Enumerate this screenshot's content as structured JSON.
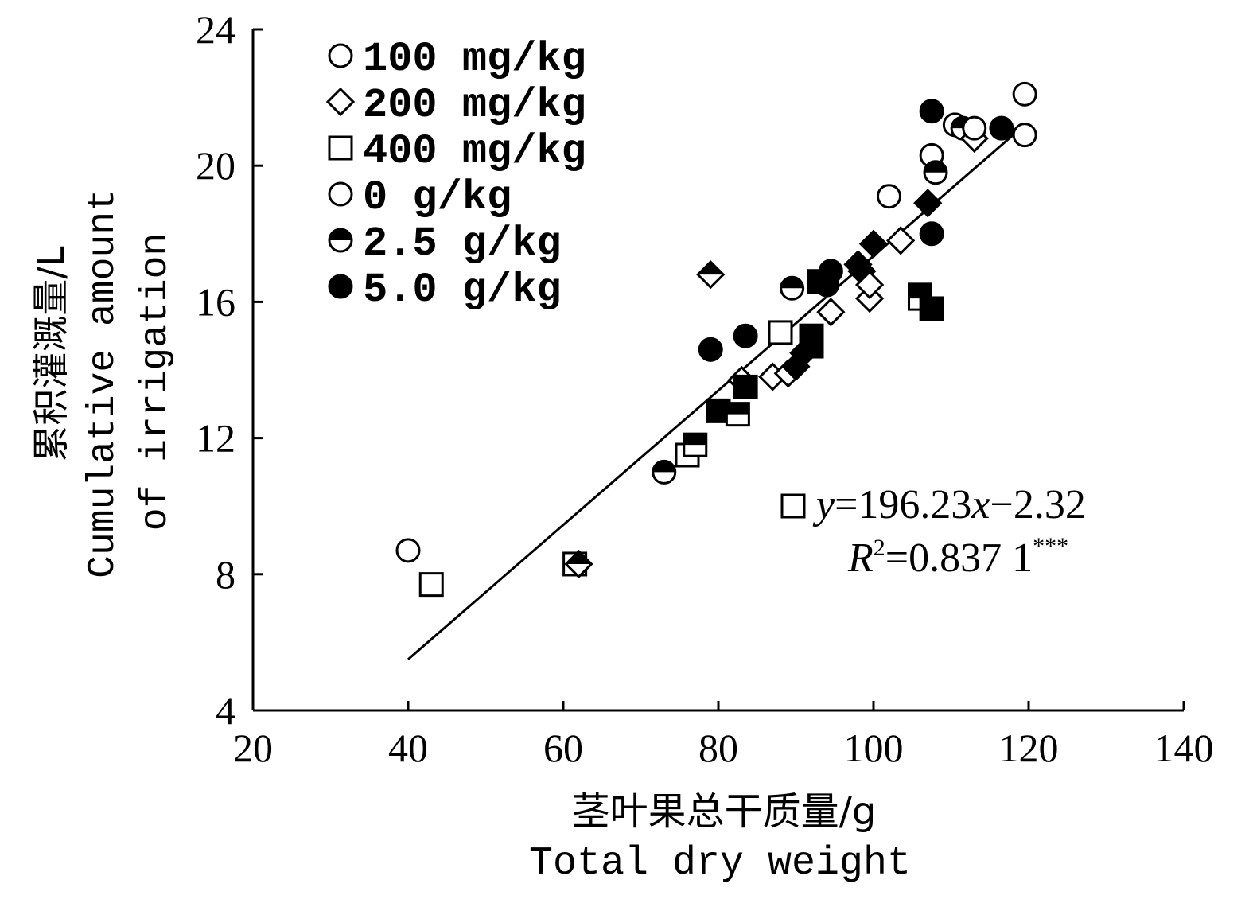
{
  "chart_data": {
    "type": "scatter",
    "xlabel_cn": "茎叶果总干质量/g",
    "xlabel_en": "Total dry weight",
    "ylabel_cn": "累积灌溉量/L",
    "ylabel_en1": "Cumulative amount",
    "ylabel_en2": "of irrigation",
    "xlim": [
      20,
      140
    ],
    "ylim": [
      4,
      24
    ],
    "x_ticks": [
      "20",
      "40",
      "60",
      "80",
      "100",
      "120",
      "140"
    ],
    "y_ticks": [
      "4",
      "8",
      "12",
      "16",
      "20",
      "24"
    ],
    "legend": {
      "position": "top-left",
      "entries": [
        {
          "label": "100 mg/kg",
          "marker": "circle",
          "fill": "open"
        },
        {
          "label": "200 mg/kg",
          "marker": "diamond",
          "fill": "open"
        },
        {
          "label": "400 mg/kg",
          "marker": "square",
          "fill": "open"
        },
        {
          "label": "0 g/kg",
          "marker": "circle",
          "fill": "open"
        },
        {
          "label": "2.5 g/kg",
          "marker": "circle",
          "fill": "half"
        },
        {
          "label": "5.0 g/kg",
          "marker": "circle",
          "fill": "filled"
        }
      ]
    },
    "points": [
      {
        "x": 40,
        "y": 8.7,
        "m": "circle",
        "f": "open"
      },
      {
        "x": 43,
        "y": 7.7,
        "m": "square",
        "f": "open"
      },
      {
        "x": 61.5,
        "y": 8.3,
        "m": "square",
        "f": "open"
      },
      {
        "x": 62,
        "y": 8.3,
        "m": "diamond",
        "f": "half"
      },
      {
        "x": 73,
        "y": 11.0,
        "m": "circle",
        "f": "half"
      },
      {
        "x": 76,
        "y": 11.5,
        "m": "square",
        "f": "open"
      },
      {
        "x": 77,
        "y": 11.8,
        "m": "square",
        "f": "half"
      },
      {
        "x": 79,
        "y": 16.8,
        "m": "diamond",
        "f": "half"
      },
      {
        "x": 79,
        "y": 14.6,
        "m": "circle",
        "f": "filled"
      },
      {
        "x": 80,
        "y": 12.8,
        "m": "square",
        "f": "filled"
      },
      {
        "x": 82.5,
        "y": 12.7,
        "m": "square",
        "f": "half"
      },
      {
        "x": 83,
        "y": 13.7,
        "m": "diamond",
        "f": "open"
      },
      {
        "x": 83.5,
        "y": 13.5,
        "m": "square",
        "f": "filled"
      },
      {
        "x": 83.5,
        "y": 15.0,
        "m": "circle",
        "f": "filled"
      },
      {
        "x": 87,
        "y": 13.8,
        "m": "diamond",
        "f": "open"
      },
      {
        "x": 88,
        "y": 15.1,
        "m": "square",
        "f": "open"
      },
      {
        "x": 89,
        "y": 13.9,
        "m": "diamond",
        "f": "open"
      },
      {
        "x": 89.5,
        "y": 16.4,
        "m": "circle",
        "f": "half"
      },
      {
        "x": 90,
        "y": 14.1,
        "m": "diamond",
        "f": "filled"
      },
      {
        "x": 91,
        "y": 14.5,
        "m": "diamond",
        "f": "filled"
      },
      {
        "x": 92,
        "y": 15.0,
        "m": "square",
        "f": "filled"
      },
      {
        "x": 92,
        "y": 14.7,
        "m": "square",
        "f": "filled"
      },
      {
        "x": 93,
        "y": 16.6,
        "m": "square",
        "f": "filled"
      },
      {
        "x": 94,
        "y": 16.5,
        "m": "circle",
        "f": "filled"
      },
      {
        "x": 94.5,
        "y": 16.9,
        "m": "circle",
        "f": "filled"
      },
      {
        "x": 94.5,
        "y": 15.7,
        "m": "diamond",
        "f": "open"
      },
      {
        "x": 98,
        "y": 17.1,
        "m": "diamond",
        "f": "filled"
      },
      {
        "x": 98.5,
        "y": 16.9,
        "m": "diamond",
        "f": "filled"
      },
      {
        "x": 99.5,
        "y": 16.1,
        "m": "diamond",
        "f": "open"
      },
      {
        "x": 99.5,
        "y": 16.5,
        "m": "diamond",
        "f": "open"
      },
      {
        "x": 100,
        "y": 17.7,
        "m": "diamond",
        "f": "filled"
      },
      {
        "x": 102,
        "y": 19.1,
        "m": "circle",
        "f": "open"
      },
      {
        "x": 103.5,
        "y": 17.8,
        "m": "diamond",
        "f": "open"
      },
      {
        "x": 106,
        "y": 16.2,
        "m": "square",
        "f": "filled"
      },
      {
        "x": 106,
        "y": 16.1,
        "m": "square",
        "f": "half"
      },
      {
        "x": 107,
        "y": 18.9,
        "m": "diamond",
        "f": "filled"
      },
      {
        "x": 107.5,
        "y": 15.8,
        "m": "square",
        "f": "filled"
      },
      {
        "x": 107.5,
        "y": 18.0,
        "m": "circle",
        "f": "filled"
      },
      {
        "x": 107.5,
        "y": 20.3,
        "m": "circle",
        "f": "open"
      },
      {
        "x": 107.5,
        "y": 21.6,
        "m": "circle",
        "f": "filled"
      },
      {
        "x": 108,
        "y": 19.8,
        "m": "circle",
        "f": "half"
      },
      {
        "x": 110.5,
        "y": 21.2,
        "m": "circle",
        "f": "open"
      },
      {
        "x": 111.5,
        "y": 21.1,
        "m": "circle",
        "f": "half"
      },
      {
        "x": 113,
        "y": 20.8,
        "m": "diamond",
        "f": "open"
      },
      {
        "x": 113,
        "y": 21.1,
        "m": "circle",
        "f": "open"
      },
      {
        "x": 116.5,
        "y": 21.1,
        "m": "circle",
        "f": "filled"
      },
      {
        "x": 119.5,
        "y": 20.9,
        "m": "circle",
        "f": "open"
      },
      {
        "x": 119.5,
        "y": 22.1,
        "m": "circle",
        "f": "open"
      }
    ],
    "fit_line": {
      "x": [
        40,
        118
      ],
      "y": [
        5.5,
        20.9
      ]
    },
    "equation": {
      "marker": "square",
      "line1_prefix": "y",
      "line1_rest": "=196.23",
      "line1_x": "x",
      "line1_suffix": "−2.32",
      "line2_r": "R",
      "line2_sup": "2",
      "line2_value": "=0.837 1",
      "line2_stars": "***"
    }
  }
}
